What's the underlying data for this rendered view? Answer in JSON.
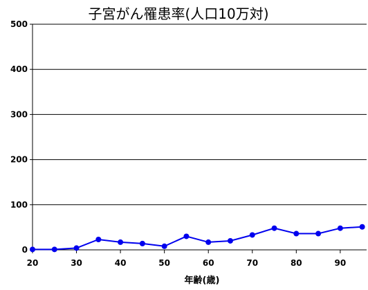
{
  "chart_data": {
    "type": "line",
    "title": "子宮がん罹患率(人口10万対)",
    "xlabel": "年齢(歳)",
    "ylabel": "",
    "xlim": [
      20,
      96
    ],
    "ylim": [
      0,
      500
    ],
    "x_ticks": [
      20,
      30,
      40,
      50,
      60,
      70,
      80,
      90
    ],
    "y_ticks": [
      0,
      100,
      200,
      300,
      400,
      500
    ],
    "grid": true,
    "legend": "none",
    "series": [
      {
        "color": "#0000ee",
        "points": [
          {
            "x": 20,
            "y": 1
          },
          {
            "x": 25,
            "y": 1
          },
          {
            "x": 30,
            "y": 4
          },
          {
            "x": 35,
            "y": 23
          },
          {
            "x": 40,
            "y": 17
          },
          {
            "x": 45,
            "y": 14
          },
          {
            "x": 50,
            "y": 8
          },
          {
            "x": 55,
            "y": 30
          },
          {
            "x": 60,
            "y": 17
          },
          {
            "x": 65,
            "y": 20
          },
          {
            "x": 70,
            "y": 33
          },
          {
            "x": 75,
            "y": 48
          },
          {
            "x": 80,
            "y": 36
          },
          {
            "x": 85,
            "y": 36
          },
          {
            "x": 90,
            "y": 48
          },
          {
            "x": 95,
            "y": 51
          }
        ]
      }
    ]
  }
}
